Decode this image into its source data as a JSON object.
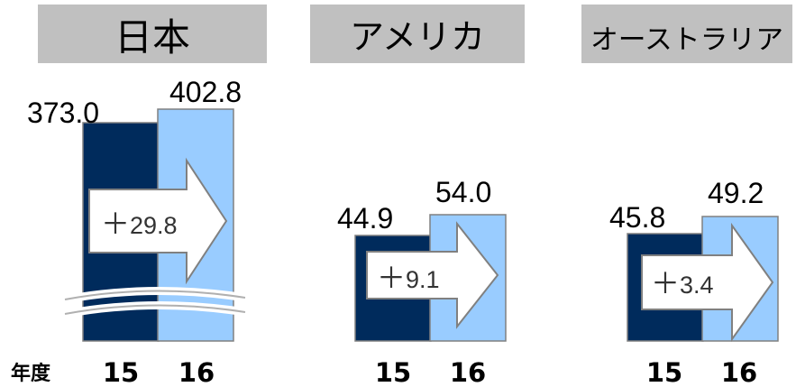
{
  "colors": {
    "year1": "#002b5c",
    "year2": "#99ccff",
    "header_bg": "#c0c0c0",
    "bar_border": "#808080"
  },
  "chart_data": [
    {
      "type": "bar",
      "title": "日本",
      "categories": [
        "15",
        "16"
      ],
      "values": [
        373.0,
        402.8
      ],
      "value_labels": [
        "373.0",
        "402.8"
      ],
      "change_label": "+29.8",
      "axis_break": true,
      "xlabel": "年度"
    },
    {
      "type": "bar",
      "title": "アメリカ",
      "categories": [
        "15",
        "16"
      ],
      "values": [
        44.9,
        54.0
      ],
      "value_labels": [
        "44.9",
        "54.0"
      ],
      "change_label": "+9.1"
    },
    {
      "type": "bar",
      "title": "オーストラリア",
      "categories": [
        "15",
        "16"
      ],
      "values": [
        45.8,
        49.2
      ],
      "value_labels": [
        "45.8",
        "49.2"
      ],
      "change_label": "+3.4"
    }
  ]
}
